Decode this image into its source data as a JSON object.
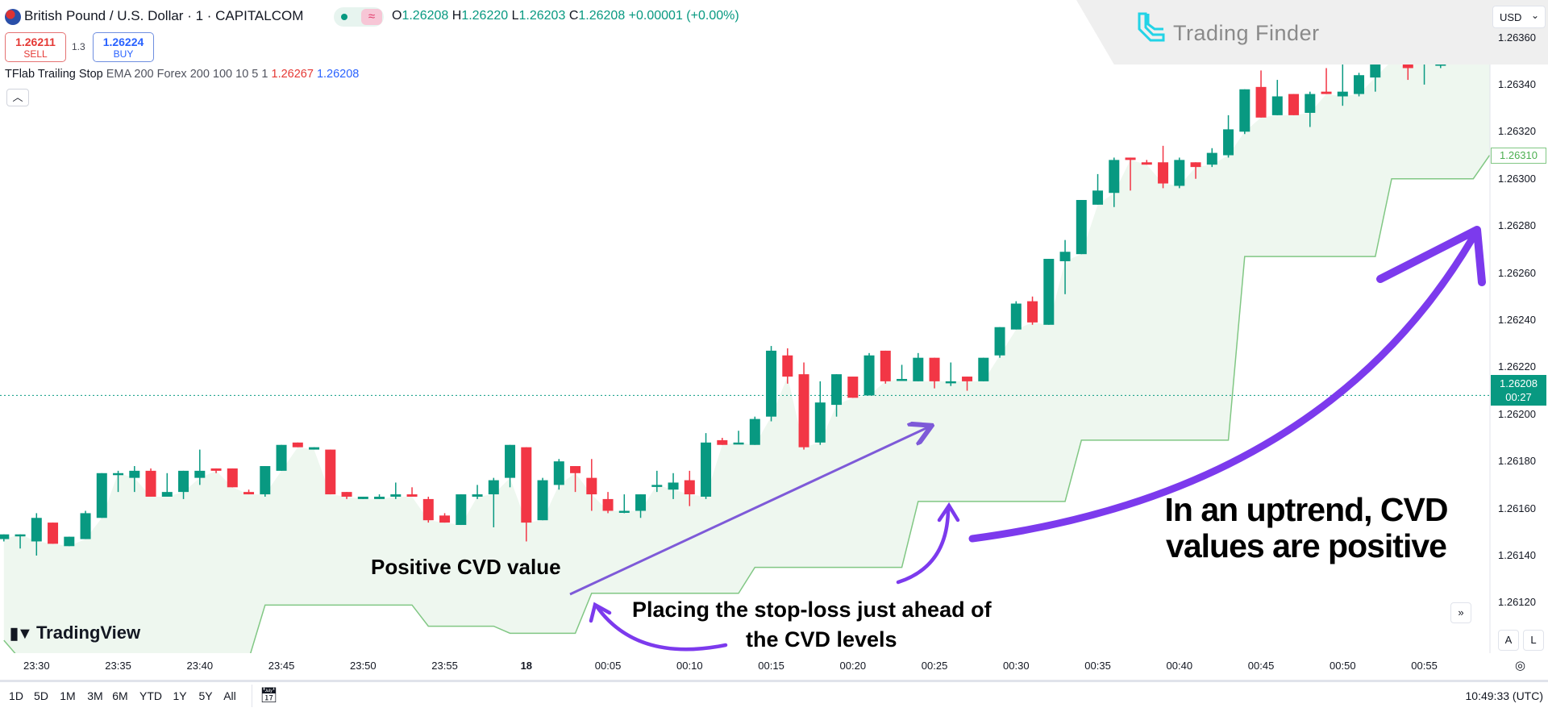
{
  "header": {
    "title": "British Pound / U.S. Dollar · 1 · CAPITALCOM",
    "market_status_icon": "market-open-dot",
    "ohlc": {
      "O": "1.26208",
      "H": "1.26220",
      "L": "1.26203",
      "C": "1.26208",
      "change": "+0.00001 (+0.00%)"
    },
    "sell_price": "1.26211",
    "sell_label": "SELL",
    "spread": "1.3",
    "buy_price": "1.26224",
    "buy_label": "BUY",
    "indicator": {
      "name": "TFlab Trailing Stop",
      "args": "EMA 200 Forex 200 100 10 5 1",
      "value1": "1.26267",
      "value2": "1.26208"
    },
    "collapse_icon": "chevron-up-icon"
  },
  "watermark": {
    "brand": "Trading Finder"
  },
  "price_axis": {
    "currency": "USD",
    "current_price": "1.26208",
    "countdown": "00:27",
    "stop_label": "1.26310"
  },
  "tradingview_logo": "TradingView",
  "annotations": {
    "left": "Positive CVD value",
    "middle_line1": "Placing the stop-loss just ahead of",
    "middle_line2": "the CVD levels",
    "right_line1": "In an uptrend, CVD",
    "right_line2": "values are positive"
  },
  "controls": {
    "scroll_right": "»",
    "auto": "A",
    "log": "L"
  },
  "bottom_bar": {
    "ranges": [
      "1D",
      "5D",
      "1M",
      "3M",
      "6M",
      "YTD",
      "1Y",
      "5Y",
      "All"
    ],
    "clock": "10:49:33 (UTC)"
  },
  "colors": {
    "up": "#089981",
    "down": "#f23645",
    "stop_line": "#81c784",
    "fill": "#eef7ef",
    "annotation": "#7c3aed"
  },
  "chart_data": {
    "type": "candlestick",
    "title": "British Pound / U.S. Dollar · 1 · CAPITALCOM",
    "y_ticks": [
      1.2636,
      1.2634,
      1.2632,
      1.263,
      1.2628,
      1.2626,
      1.2624,
      1.2622,
      1.262,
      1.2618,
      1.2616,
      1.2614,
      1.2612
    ],
    "ylim": [
      1.26099,
      1.26376
    ],
    "x_ticks": [
      "23:30",
      "23:35",
      "23:40",
      "23:45",
      "23:50",
      "23:55",
      "18",
      "00:05",
      "00:10",
      "00:15",
      "00:20",
      "00:25",
      "00:30",
      "00:35",
      "00:40",
      "00:45",
      "00:50",
      "00:55"
    ],
    "grid": false,
    "columns": [
      "time",
      "open",
      "high",
      "low",
      "close"
    ],
    "candles": [
      [
        "23:28",
        1.26147,
        1.26149,
        1.26146,
        1.26149
      ],
      [
        "23:29",
        1.26149,
        1.26149,
        1.26143,
        1.26149
      ],
      [
        "23:30",
        1.26146,
        1.26158,
        1.2614,
        1.26156
      ],
      [
        "23:31",
        1.26154,
        1.26154,
        1.26145,
        1.26145
      ],
      [
        "23:32",
        1.26144,
        1.26148,
        1.26144,
        1.26148
      ],
      [
        "23:33",
        1.26147,
        1.26159,
        1.26147,
        1.26158
      ],
      [
        "23:34",
        1.26156,
        1.26175,
        1.26156,
        1.26175
      ],
      [
        "23:35",
        1.26175,
        1.26176,
        1.26167,
        1.26175
      ],
      [
        "23:36",
        1.26173,
        1.26178,
        1.26167,
        1.26176
      ],
      [
        "23:37",
        1.26176,
        1.26177,
        1.26165,
        1.26165
      ],
      [
        "23:38",
        1.26165,
        1.26175,
        1.26165,
        1.26167
      ],
      [
        "23:39",
        1.26167,
        1.26176,
        1.26164,
        1.26176
      ],
      [
        "23:40",
        1.26173,
        1.26185,
        1.2617,
        1.26176
      ],
      [
        "23:41",
        1.26177,
        1.26177,
        1.26175,
        1.26176
      ],
      [
        "23:42",
        1.26177,
        1.26177,
        1.26169,
        1.26169
      ],
      [
        "23:43",
        1.26167,
        1.26168,
        1.26166,
        1.26166
      ],
      [
        "23:44",
        1.26166,
        1.26178,
        1.26165,
        1.26178
      ],
      [
        "23:45",
        1.26176,
        1.26187,
        1.26176,
        1.26187
      ],
      [
        "23:46",
        1.26188,
        1.26188,
        1.26186,
        1.26186
      ],
      [
        "23:47",
        1.26185,
        1.26186,
        1.26185,
        1.26186
      ],
      [
        "23:48",
        1.26185,
        1.26185,
        1.26166,
        1.26166
      ],
      [
        "23:49",
        1.26167,
        1.26167,
        1.26164,
        1.26165
      ],
      [
        "23:50",
        1.26164,
        1.26165,
        1.26164,
        1.26165
      ],
      [
        "23:51",
        1.26164,
        1.26166,
        1.26164,
        1.26165
      ],
      [
        "23:52",
        1.26165,
        1.26171,
        1.26164,
        1.26166
      ],
      [
        "23:53",
        1.26166,
        1.26169,
        1.26165,
        1.26165
      ],
      [
        "23:54",
        1.26164,
        1.26165,
        1.26154,
        1.26155
      ],
      [
        "23:55",
        1.26157,
        1.26158,
        1.26154,
        1.26154
      ],
      [
        "23:56",
        1.26153,
        1.26166,
        1.26153,
        1.26166
      ],
      [
        "23:57",
        1.26165,
        1.2617,
        1.26164,
        1.26166
      ],
      [
        "23:58",
        1.26166,
        1.26173,
        1.26152,
        1.26172
      ],
      [
        "23:59",
        1.26173,
        1.26187,
        1.26169,
        1.26187
      ],
      [
        "00:00",
        1.26186,
        1.26186,
        1.26146,
        1.26154
      ],
      [
        "00:01",
        1.26155,
        1.26173,
        1.26155,
        1.26172
      ],
      [
        "00:02",
        1.2617,
        1.26181,
        1.26168,
        1.2618
      ],
      [
        "00:03",
        1.26178,
        1.26178,
        1.26167,
        1.26175
      ],
      [
        "00:04",
        1.26173,
        1.26181,
        1.26159,
        1.26166
      ],
      [
        "00:05",
        1.26164,
        1.26167,
        1.26158,
        1.26159
      ],
      [
        "00:06",
        1.26159,
        1.26166,
        1.26158,
        1.26159
      ],
      [
        "00:07",
        1.26159,
        1.26166,
        1.26156,
        1.26166
      ],
      [
        "00:08",
        1.2617,
        1.26176,
        1.26167,
        1.2617
      ],
      [
        "00:09",
        1.26168,
        1.26175,
        1.26164,
        1.26171
      ],
      [
        "00:10",
        1.26172,
        1.26176,
        1.26161,
        1.26166
      ],
      [
        "00:11",
        1.26165,
        1.26192,
        1.26164,
        1.26188
      ],
      [
        "00:12",
        1.26189,
        1.2619,
        1.26187,
        1.26187
      ],
      [
        "00:13",
        1.26188,
        1.26193,
        1.26188,
        1.26188
      ],
      [
        "00:14",
        1.26187,
        1.26199,
        1.26187,
        1.26198
      ],
      [
        "00:15",
        1.26199,
        1.26229,
        1.26197,
        1.26227
      ],
      [
        "00:16",
        1.26225,
        1.26228,
        1.26213,
        1.26216
      ],
      [
        "00:17",
        1.26217,
        1.26222,
        1.26185,
        1.26186
      ],
      [
        "00:18",
        1.26188,
        1.26214,
        1.26187,
        1.26205
      ],
      [
        "00:19",
        1.26204,
        1.26217,
        1.26199,
        1.26217
      ],
      [
        "00:20",
        1.26216,
        1.26216,
        1.26207,
        1.26207
      ],
      [
        "00:21",
        1.26208,
        1.26226,
        1.26208,
        1.26225
      ],
      [
        "00:22",
        1.26227,
        1.26227,
        1.26213,
        1.26214
      ],
      [
        "00:23",
        1.26215,
        1.26221,
        1.26215,
        1.26215
      ],
      [
        "00:24",
        1.26214,
        1.26226,
        1.26214,
        1.26224
      ],
      [
        "00:25",
        1.26224,
        1.26224,
        1.26211,
        1.26214
      ],
      [
        "00:26",
        1.26214,
        1.26222,
        1.26212,
        1.26214
      ],
      [
        "00:27",
        1.26216,
        1.26216,
        1.2621,
        1.26214
      ],
      [
        "00:28",
        1.26214,
        1.26224,
        1.26214,
        1.26224
      ],
      [
        "00:29",
        1.26225,
        1.26237,
        1.26224,
        1.26237
      ],
      [
        "00:30",
        1.26236,
        1.26248,
        1.26236,
        1.26247
      ],
      [
        "00:31",
        1.26248,
        1.2625,
        1.26238,
        1.26239
      ],
      [
        "00:32",
        1.26238,
        1.26266,
        1.26238,
        1.26266
      ],
      [
        "00:33",
        1.26265,
        1.26274,
        1.26251,
        1.26269
      ],
      [
        "00:34",
        1.26268,
        1.26291,
        1.26268,
        1.26291
      ],
      [
        "00:35",
        1.26289,
        1.26302,
        1.26289,
        1.26295
      ],
      [
        "00:36",
        1.26294,
        1.26309,
        1.26288,
        1.26308
      ],
      [
        "00:37",
        1.26309,
        1.26309,
        1.26295,
        1.26308
      ],
      [
        "00:38",
        1.26307,
        1.26308,
        1.26306,
        1.26306
      ],
      [
        "00:39",
        1.26307,
        1.26314,
        1.26296,
        1.26298
      ],
      [
        "00:40",
        1.26297,
        1.26309,
        1.26296,
        1.26308
      ],
      [
        "00:41",
        1.26307,
        1.26307,
        1.263,
        1.26305
      ],
      [
        "00:42",
        1.26306,
        1.26313,
        1.26305,
        1.26311
      ],
      [
        "00:43",
        1.2631,
        1.26327,
        1.26309,
        1.26321
      ],
      [
        "00:44",
        1.2632,
        1.26338,
        1.26319,
        1.26338
      ],
      [
        "00:45",
        1.26339,
        1.26346,
        1.26326,
        1.26326
      ],
      [
        "00:46",
        1.26327,
        1.26342,
        1.26327,
        1.26335
      ],
      [
        "00:47",
        1.26336,
        1.26336,
        1.26327,
        1.26327
      ],
      [
        "00:48",
        1.26328,
        1.26337,
        1.26322,
        1.26336
      ],
      [
        "00:49",
        1.26337,
        1.26347,
        1.26336,
        1.26336
      ],
      [
        "00:50",
        1.26335,
        1.2635,
        1.26331,
        1.26337
      ],
      [
        "00:51",
        1.26336,
        1.26345,
        1.26335,
        1.26344
      ],
      [
        "00:52",
        1.26343,
        1.26355,
        1.26337,
        1.26352
      ],
      [
        "00:53",
        1.2635,
        1.26362,
        1.2635,
        1.26357
      ],
      [
        "00:54",
        1.26358,
        1.26366,
        1.26342,
        1.26347
      ],
      [
        "00:55",
        1.26351,
        1.26359,
        1.2634,
        1.26351
      ],
      [
        "00:56",
        1.26348,
        1.26367,
        1.26347,
        1.26366
      ],
      [
        "00:57",
        1.26367,
        1.26373,
        1.26361,
        1.26362
      ],
      [
        "00:58",
        1.26363,
        1.26372,
        1.26355,
        1.2637
      ],
      [
        "00:59",
        1.26371,
        1.26376,
        1.2637,
        1.26375
      ]
    ],
    "trailing_stop": [
      [
        "23:28",
        1.26104
      ],
      [
        "23:29",
        1.26096
      ],
      [
        "23:43",
        1.26096
      ],
      [
        "23:44",
        1.26119
      ],
      [
        "23:53",
        1.26119
      ],
      [
        "23:54",
        1.2611
      ],
      [
        "23:58",
        1.2611
      ],
      [
        "23:59",
        1.26107
      ],
      [
        "00:03",
        1.26107
      ],
      [
        "00:04",
        1.26124
      ],
      [
        "00:13",
        1.26124
      ],
      [
        "00:14",
        1.26135
      ],
      [
        "00:23",
        1.26135
      ],
      [
        "00:24",
        1.26163
      ],
      [
        "00:33",
        1.26163
      ],
      [
        "00:34",
        1.26189
      ],
      [
        "00:43",
        1.26189
      ],
      [
        "00:44",
        1.26267
      ],
      [
        "00:52",
        1.26267
      ],
      [
        "00:53",
        1.263
      ],
      [
        "00:58",
        1.263
      ],
      [
        "00:59",
        1.2631
      ]
    ],
    "current_price_line": 1.26208
  }
}
